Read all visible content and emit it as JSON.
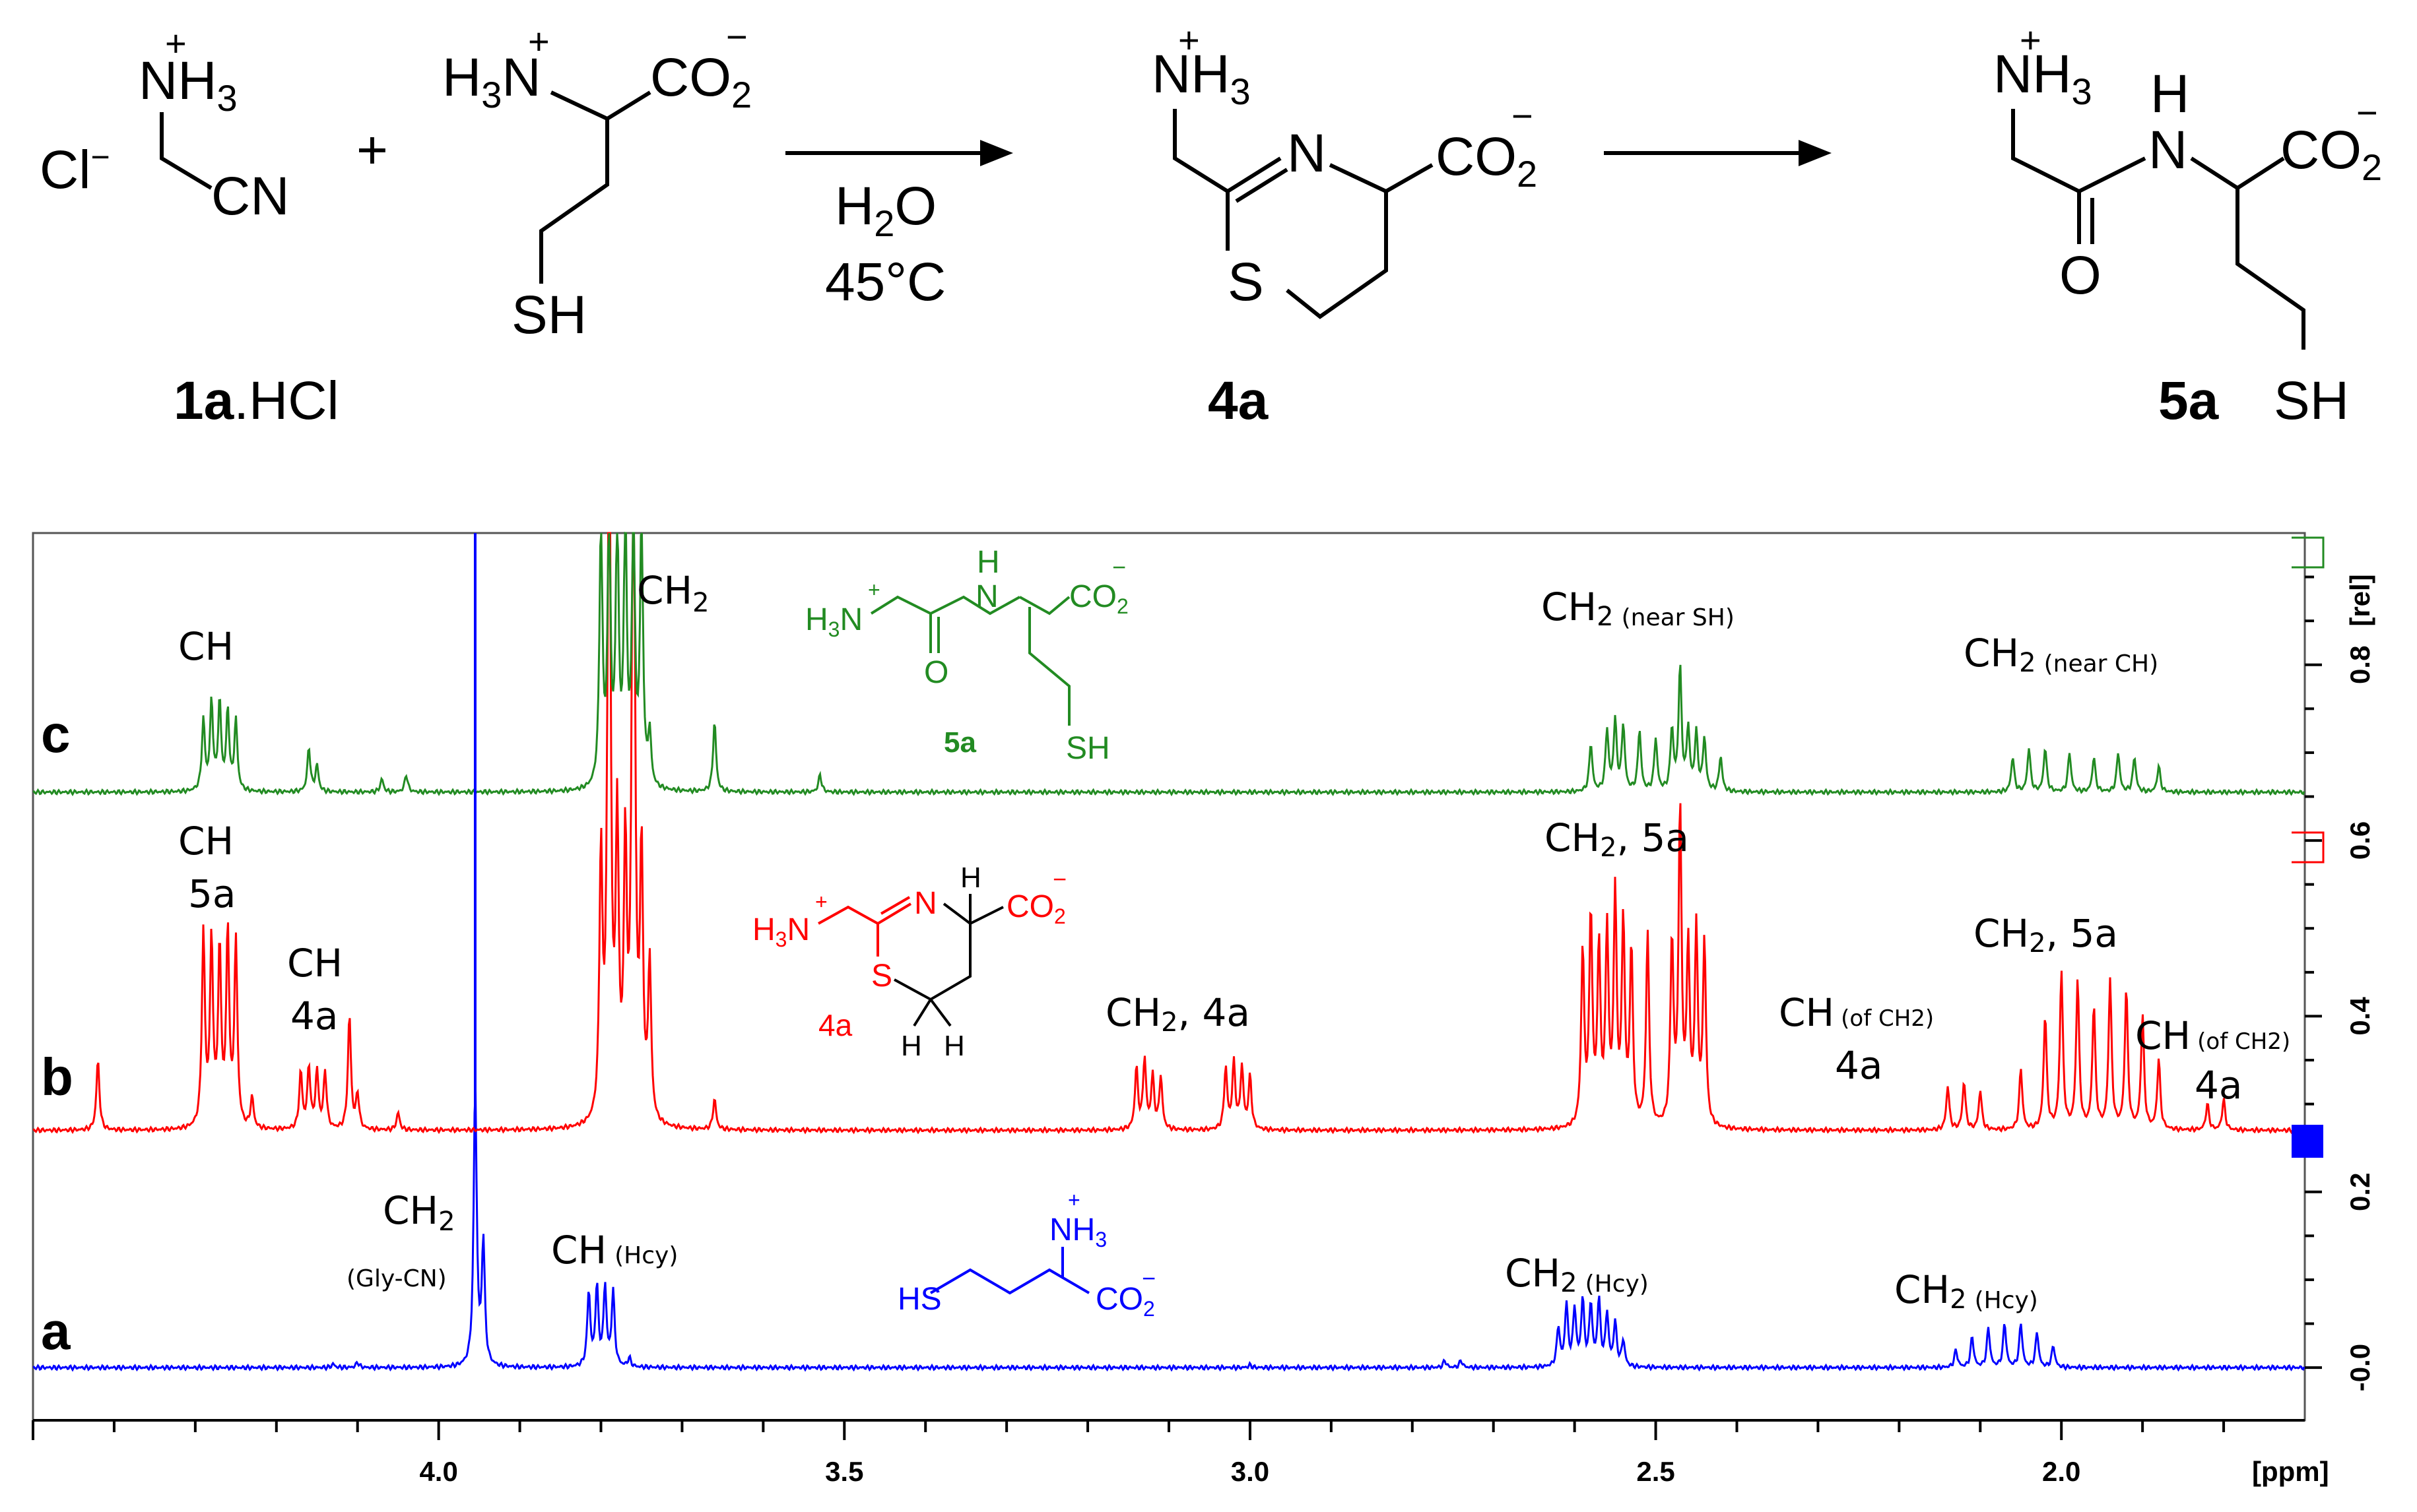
{
  "scheme": {
    "cl": "Cl",
    "cl_sup": "−",
    "nh3": "NH",
    "nh3_sub": "3",
    "plus_sup": "+",
    "cn": "CN",
    "plus_sign": "+",
    "h3n": "H",
    "h3n_sub": "3",
    "h3n_n": "N",
    "co2": "CO",
    "co2_sub": "2",
    "co2_sup": "−",
    "sh": "SH",
    "cond_h": "H",
    "cond_sub": "2",
    "cond_o": "O",
    "cond_temp": "45°C",
    "n": "N",
    "s": "S",
    "h": "H",
    "o": "O",
    "label_1a_bold": "1a",
    "label_1a_rest": ".HCl",
    "label_4a": "4a",
    "label_5a": "5a"
  },
  "colors": {
    "a": "#0000ff",
    "b": "#ff0000",
    "c": "#228b22",
    "axis": "#000000",
    "frame": "#555555"
  },
  "chart_data": {
    "type": "line",
    "xlabel": "[ppm]",
    "ylabel": "[rel]",
    "x_ticks": [
      "4.0",
      "3.5",
      "3.0",
      "2.5",
      "2.0"
    ],
    "y_ticks": [
      "0.8",
      "0.6",
      "0.4",
      "0.2",
      "-0.0"
    ],
    "x_tick_values": [
      4.0,
      3.5,
      3.0,
      2.5,
      2.0
    ],
    "y_tick_values": [
      0.8,
      0.6,
      0.4,
      0.2,
      0.0
    ],
    "xlim": [
      4.5,
      1.7
    ],
    "ylim": [
      -0.06,
      0.95
    ],
    "series": [
      {
        "name": "a",
        "color": "#0000ff",
        "baseline": 0.0,
        "peaks": [
          [
            4.13,
            0.004
          ],
          [
            4.1,
            0.006
          ],
          [
            3.955,
            0.32
          ],
          [
            3.945,
            0.14
          ],
          [
            3.815,
            0.085
          ],
          [
            3.805,
            0.09
          ],
          [
            3.795,
            0.09
          ],
          [
            3.785,
            0.085
          ],
          [
            3.765,
            0.01
          ],
          [
            3.0,
            0.003
          ],
          [
            2.76,
            0.008
          ],
          [
            2.74,
            0.008
          ],
          [
            2.62,
            0.045
          ],
          [
            2.61,
            0.07
          ],
          [
            2.6,
            0.065
          ],
          [
            2.59,
            0.075
          ],
          [
            2.58,
            0.07
          ],
          [
            2.57,
            0.075
          ],
          [
            2.56,
            0.06
          ],
          [
            2.55,
            0.05
          ],
          [
            2.54,
            0.03
          ],
          [
            2.13,
            0.02
          ],
          [
            2.11,
            0.035
          ],
          [
            2.09,
            0.045
          ],
          [
            2.07,
            0.05
          ],
          [
            2.05,
            0.05
          ],
          [
            2.03,
            0.04
          ],
          [
            2.01,
            0.025
          ]
        ]
      },
      {
        "name": "b",
        "color": "#ff0000",
        "baseline": 0.27,
        "peaks": [
          [
            4.42,
            0.08
          ],
          [
            4.29,
            0.22
          ],
          [
            4.28,
            0.21
          ],
          [
            4.27,
            0.2
          ],
          [
            4.26,
            0.22
          ],
          [
            4.25,
            0.21
          ],
          [
            4.23,
            0.035
          ],
          [
            4.17,
            0.065
          ],
          [
            4.16,
            0.07
          ],
          [
            4.15,
            0.065
          ],
          [
            4.14,
            0.065
          ],
          [
            4.11,
            0.13
          ],
          [
            4.1,
            0.04
          ],
          [
            4.05,
            0.02
          ],
          [
            3.8,
            0.3
          ],
          [
            3.79,
            0.9
          ],
          [
            3.78,
            0.33
          ],
          [
            3.77,
            0.3
          ],
          [
            3.76,
            0.9
          ],
          [
            3.75,
            0.3
          ],
          [
            3.74,
            0.18
          ],
          [
            3.66,
            0.035
          ],
          [
            3.14,
            0.07
          ],
          [
            3.13,
            0.08
          ],
          [
            3.12,
            0.06
          ],
          [
            3.11,
            0.06
          ],
          [
            3.03,
            0.07
          ],
          [
            3.02,
            0.075
          ],
          [
            3.01,
            0.07
          ],
          [
            3.0,
            0.06
          ],
          [
            2.59,
            0.2
          ],
          [
            2.58,
            0.24
          ],
          [
            2.57,
            0.2
          ],
          [
            2.56,
            0.22
          ],
          [
            2.55,
            0.26
          ],
          [
            2.54,
            0.23
          ],
          [
            2.53,
            0.2
          ],
          [
            2.51,
            0.22
          ],
          [
            2.48,
            0.21
          ],
          [
            2.47,
            0.36
          ],
          [
            2.46,
            0.2
          ],
          [
            2.45,
            0.22
          ],
          [
            2.44,
            0.21
          ],
          [
            2.14,
            0.05
          ],
          [
            2.12,
            0.055
          ],
          [
            2.1,
            0.045
          ],
          [
            2.05,
            0.07
          ],
          [
            2.02,
            0.13
          ],
          [
            2.0,
            0.18
          ],
          [
            1.98,
            0.17
          ],
          [
            1.96,
            0.14
          ],
          [
            1.94,
            0.17
          ],
          [
            1.92,
            0.16
          ],
          [
            1.9,
            0.13
          ],
          [
            1.88,
            0.08
          ],
          [
            1.82,
            0.03
          ],
          [
            1.8,
            0.035
          ]
        ]
      },
      {
        "name": "c",
        "color": "#228b22",
        "baseline": 0.655,
        "peaks": [
          [
            4.29,
            0.08
          ],
          [
            4.28,
            0.1
          ],
          [
            4.27,
            0.1
          ],
          [
            4.26,
            0.09
          ],
          [
            4.25,
            0.08
          ],
          [
            4.16,
            0.05
          ],
          [
            4.15,
            0.03
          ],
          [
            4.07,
            0.015
          ],
          [
            4.04,
            0.02
          ],
          [
            3.8,
            0.3
          ],
          [
            3.79,
            0.3
          ],
          [
            3.78,
            0.3
          ],
          [
            3.77,
            0.3
          ],
          [
            3.76,
            0.3
          ],
          [
            3.75,
            0.3
          ],
          [
            3.74,
            0.06
          ],
          [
            3.66,
            0.08
          ],
          [
            3.53,
            0.02
          ],
          [
            2.58,
            0.055
          ],
          [
            2.56,
            0.07
          ],
          [
            2.55,
            0.08
          ],
          [
            2.54,
            0.075
          ],
          [
            2.52,
            0.07
          ],
          [
            2.5,
            0.06
          ],
          [
            2.48,
            0.07
          ],
          [
            2.47,
            0.14
          ],
          [
            2.46,
            0.07
          ],
          [
            2.45,
            0.065
          ],
          [
            2.44,
            0.06
          ],
          [
            2.42,
            0.04
          ],
          [
            2.06,
            0.04
          ],
          [
            2.04,
            0.05
          ],
          [
            2.02,
            0.05
          ],
          [
            1.99,
            0.045
          ],
          [
            1.96,
            0.04
          ],
          [
            1.93,
            0.045
          ],
          [
            1.91,
            0.04
          ],
          [
            1.88,
            0.03
          ]
        ]
      }
    ],
    "trace_labels": [
      "a",
      "b",
      "c"
    ],
    "annotations": {
      "c_ch": "CH",
      "c_ch2": "CH",
      "c_ch2_sub": "2",
      "c_ch2_sh": "CH",
      "c_ch2_sh_sub": "2",
      "c_ch2_sh_note": "(near SH)",
      "c_ch2_ch": "CH",
      "c_ch2_ch_sub": "2",
      "c_ch2_ch_note": "(near CH)",
      "b_ch5a_1": "CH",
      "b_ch5a_2": "5a",
      "b_ch4a_1": "CH",
      "b_ch4a_2": "4a",
      "b_ch2_4a": "CH",
      "b_ch2_4a_sub": "2",
      "b_ch2_4a_rest": ", 4a",
      "b_ch2_5a_a": "CH",
      "b_ch2_5a_a_sub": "2",
      "b_ch2_5a_a_rest": ", 5a",
      "b_ch2_5a_b": "CH",
      "b_ch2_5a_b_sub": "2",
      "b_ch2_5a_b_rest": ", 5a",
      "b_chofch2_1": "CH",
      "b_chofch2_1_note": "(of CH2)",
      "b_chofch2_1_lab": "4a",
      "b_chofch2_2": "CH",
      "b_chofch2_2_note": "(of CH2)",
      "b_chofch2_2_lab": "4a",
      "a_ch2": "CH",
      "a_ch2_sub": "2",
      "a_glycn": "(Gly-CN)",
      "a_ch_hcy": "CH",
      "a_ch_hcy_note": "(Hcy)",
      "a_ch2_hcy1": "CH",
      "a_ch2_hcy1_sub": "2",
      "a_ch2_hcy1_note": "(Hcy)",
      "a_ch2_hcy2": "CH",
      "a_ch2_hcy2_sub": "2",
      "a_ch2_hcy2_note": "(Hcy)"
    },
    "structures": {
      "green_h3n": "H",
      "green_h3n_sub": "3",
      "green_n": "N",
      "green_plus": "+",
      "green_nh": "N",
      "green_h": "H",
      "green_co2": "CO",
      "green_co2_sub": "2",
      "green_minus": "−",
      "green_o": "O",
      "green_sh": "SH",
      "green_label": "5a",
      "red_h3n": "H",
      "red_h3n_sub": "3",
      "red_n": "N",
      "red_plus": "+",
      "red_ring_n": "N",
      "red_s": "S",
      "red_h_top": "H",
      "red_h1": "H",
      "red_h2": "H",
      "red_co2": "CO",
      "red_co2_sub": "2",
      "red_minus": "−",
      "red_label": "4a",
      "blue_nh3": "NH",
      "blue_nh3_sub": "3",
      "blue_plus": "+",
      "blue_hs": "HS",
      "blue_co2": "CO",
      "blue_co2_sub": "2",
      "blue_minus": "−"
    }
  }
}
